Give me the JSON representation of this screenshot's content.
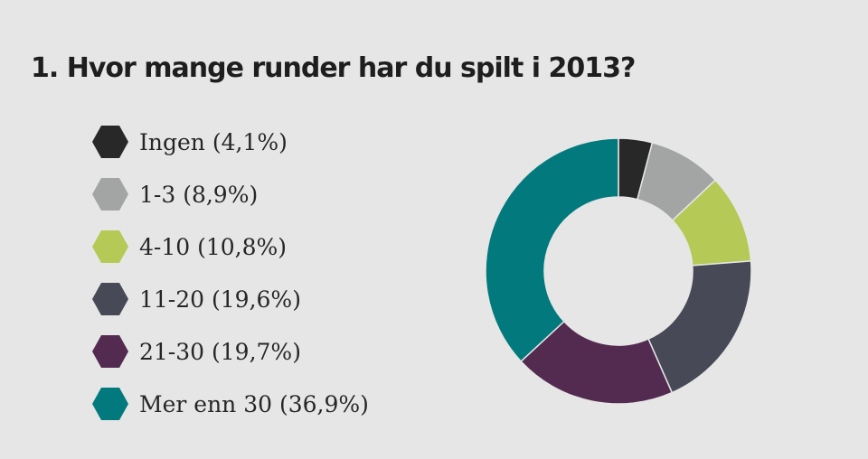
{
  "chart_data": {
    "type": "pie",
    "variant": "donut",
    "title": "1. Hvor mange runder har du spilt i 2013?",
    "legend_position": "left",
    "slices": [
      {
        "label": "Ingen (4,1%)",
        "value": 4.1,
        "color": "#282828"
      },
      {
        "label": "1-3 (8,9%)",
        "value": 8.9,
        "color": "#a3a5a4"
      },
      {
        "label": "4-10 (10,8%)",
        "value": 10.8,
        "color": "#b5c957"
      },
      {
        "label": "11-20 (19,6%)",
        "value": 19.6,
        "color": "#474a56"
      },
      {
        "label": "21-30 (19,7%)",
        "value": 19.7,
        "color": "#532a50"
      },
      {
        "label": "Mer enn 30 (36,9%)",
        "value": 36.9,
        "color": "#027a7d"
      }
    ]
  }
}
